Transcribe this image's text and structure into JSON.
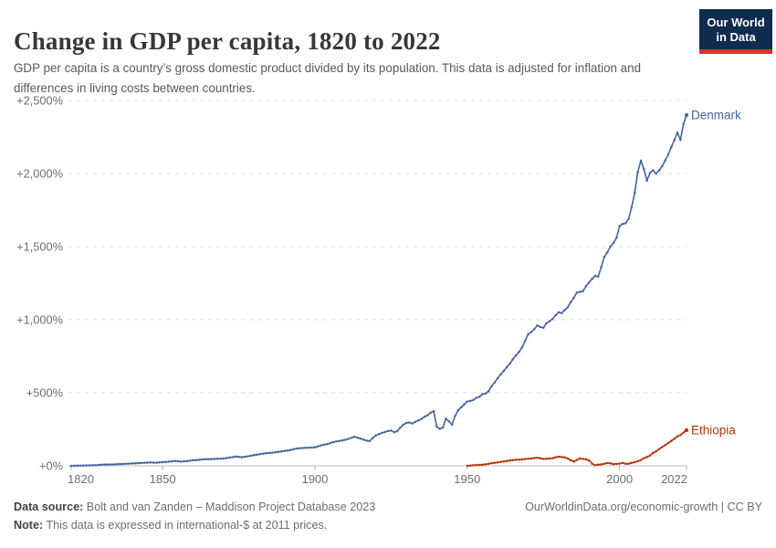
{
  "header": {
    "title": "Change in GDP per capita, 1820 to 2022",
    "subtitle": "GDP per capita is a country’s gross domestic product divided by its population. This data is adjusted for inflation and differences in living costs between countries."
  },
  "logo": {
    "line1": "Our World",
    "line2": "in Data",
    "bg": "#0f2b4d",
    "stripe": "#d8322a"
  },
  "footer": {
    "source_label": "Data source:",
    "source_text": "Bolt and van Zanden – Maddison Project Database 2023",
    "note_label": "Note:",
    "note_text": "This data is expressed in international-$ at 2011 prices.",
    "credit": "OurWorldinData.org/economic-growth | CC BY"
  },
  "chart_data": {
    "type": "line",
    "title": "Change in GDP per capita, 1820 to 2022",
    "xlabel": "",
    "ylabel": "",
    "xlim": [
      1820,
      2022
    ],
    "ylim": [
      0,
      2500
    ],
    "grid": "horizontal-dashed",
    "legend_position": "line-end-labels",
    "x_ticks": [
      {
        "label": "1820",
        "value": 1820
      },
      {
        "label": "1850",
        "value": 1850
      },
      {
        "label": "1900",
        "value": 1900
      },
      {
        "label": "1950",
        "value": 1950
      },
      {
        "label": "2000",
        "value": 2000
      },
      {
        "label": "2022",
        "value": 2022
      }
    ],
    "y_ticks": [
      {
        "label": "+0%",
        "value": 0
      },
      {
        "label": "+500%",
        "value": 500
      },
      {
        "label": "+1,000%",
        "value": 1000
      },
      {
        "label": "+1,500%",
        "value": 1500
      },
      {
        "label": "+2,000%",
        "value": 2000
      },
      {
        "label": "+2,500%",
        "value": 2500
      }
    ],
    "series": [
      {
        "name": "Denmark",
        "color": "#44659e",
        "points": [
          [
            1820,
            0
          ],
          [
            1822,
            1
          ],
          [
            1824,
            2
          ],
          [
            1826,
            3
          ],
          [
            1828,
            4
          ],
          [
            1830,
            8
          ],
          [
            1832,
            9
          ],
          [
            1834,
            10
          ],
          [
            1836,
            12
          ],
          [
            1838,
            14
          ],
          [
            1840,
            16
          ],
          [
            1842,
            18
          ],
          [
            1844,
            21
          ],
          [
            1846,
            23
          ],
          [
            1848,
            21
          ],
          [
            1850,
            25
          ],
          [
            1852,
            28
          ],
          [
            1854,
            33
          ],
          [
            1856,
            29
          ],
          [
            1858,
            32
          ],
          [
            1860,
            38
          ],
          [
            1862,
            41
          ],
          [
            1864,
            45
          ],
          [
            1866,
            46
          ],
          [
            1868,
            48
          ],
          [
            1870,
            50
          ],
          [
            1872,
            56
          ],
          [
            1874,
            63
          ],
          [
            1876,
            59
          ],
          [
            1878,
            65
          ],
          [
            1880,
            73
          ],
          [
            1882,
            80
          ],
          [
            1884,
            86
          ],
          [
            1886,
            90
          ],
          [
            1888,
            95
          ],
          [
            1890,
            101
          ],
          [
            1892,
            108
          ],
          [
            1894,
            118
          ],
          [
            1896,
            122
          ],
          [
            1898,
            124
          ],
          [
            1900,
            126
          ],
          [
            1902,
            140
          ],
          [
            1904,
            149
          ],
          [
            1906,
            162
          ],
          [
            1908,
            170
          ],
          [
            1910,
            178
          ],
          [
            1912,
            191
          ],
          [
            1913,
            198
          ],
          [
            1915,
            186
          ],
          [
            1917,
            172
          ],
          [
            1918,
            170
          ],
          [
            1919,
            190
          ],
          [
            1920,
            208
          ],
          [
            1922,
            225
          ],
          [
            1924,
            238
          ],
          [
            1925,
            241
          ],
          [
            1926,
            230
          ],
          [
            1927,
            236
          ],
          [
            1928,
            261
          ],
          [
            1929,
            281
          ],
          [
            1930,
            293
          ],
          [
            1931,
            296
          ],
          [
            1932,
            290
          ],
          [
            1933,
            301
          ],
          [
            1934,
            311
          ],
          [
            1935,
            321
          ],
          [
            1936,
            336
          ],
          [
            1937,
            346
          ],
          [
            1938,
            363
          ],
          [
            1939,
            373
          ],
          [
            1940,
            268
          ],
          [
            1941,
            253
          ],
          [
            1942,
            262
          ],
          [
            1943,
            322
          ],
          [
            1944,
            305
          ],
          [
            1945,
            281
          ],
          [
            1946,
            340
          ],
          [
            1947,
            380
          ],
          [
            1948,
            400
          ],
          [
            1949,
            420
          ],
          [
            1950,
            440
          ],
          [
            1951,
            444
          ],
          [
            1952,
            450
          ],
          [
            1953,
            465
          ],
          [
            1954,
            472
          ],
          [
            1955,
            490
          ],
          [
            1956,
            495
          ],
          [
            1957,
            510
          ],
          [
            1958,
            545
          ],
          [
            1959,
            570
          ],
          [
            1960,
            600
          ],
          [
            1961,
            625
          ],
          [
            1962,
            650
          ],
          [
            1963,
            675
          ],
          [
            1964,
            700
          ],
          [
            1965,
            730
          ],
          [
            1966,
            755
          ],
          [
            1967,
            780
          ],
          [
            1968,
            810
          ],
          [
            1969,
            855
          ],
          [
            1970,
            900
          ],
          [
            1971,
            915
          ],
          [
            1972,
            935
          ],
          [
            1973,
            960
          ],
          [
            1974,
            950
          ],
          [
            1975,
            945
          ],
          [
            1976,
            975
          ],
          [
            1977,
            990
          ],
          [
            1978,
            1005
          ],
          [
            1979,
            1030
          ],
          [
            1980,
            1050
          ],
          [
            1981,
            1045
          ],
          [
            1982,
            1065
          ],
          [
            1983,
            1085
          ],
          [
            1984,
            1120
          ],
          [
            1985,
            1150
          ],
          [
            1986,
            1185
          ],
          [
            1987,
            1190
          ],
          [
            1988,
            1195
          ],
          [
            1989,
            1230
          ],
          [
            1990,
            1255
          ],
          [
            1991,
            1280
          ],
          [
            1992,
            1300
          ],
          [
            1993,
            1295
          ],
          [
            1994,
            1360
          ],
          [
            1995,
            1430
          ],
          [
            1996,
            1460
          ],
          [
            1997,
            1500
          ],
          [
            1998,
            1525
          ],
          [
            1999,
            1560
          ],
          [
            2000,
            1640
          ],
          [
            2001,
            1655
          ],
          [
            2002,
            1660
          ],
          [
            2003,
            1690
          ],
          [
            2004,
            1770
          ],
          [
            2005,
            1870
          ],
          [
            2006,
            2010
          ],
          [
            2007,
            2088
          ],
          [
            2008,
            2030
          ],
          [
            2009,
            1952
          ],
          [
            2010,
            2005
          ],
          [
            2011,
            2022
          ],
          [
            2012,
            2000
          ],
          [
            2013,
            2022
          ],
          [
            2014,
            2050
          ],
          [
            2015,
            2090
          ],
          [
            2016,
            2130
          ],
          [
            2017,
            2180
          ],
          [
            2018,
            2230
          ],
          [
            2019,
            2280
          ],
          [
            2020,
            2230
          ],
          [
            2021,
            2340
          ],
          [
            2022,
            2400
          ]
        ]
      },
      {
        "name": "Ethiopia",
        "color": "#b13507",
        "points": [
          [
            1950,
            0
          ],
          [
            1951,
            2
          ],
          [
            1952,
            4
          ],
          [
            1953,
            5
          ],
          [
            1954,
            6
          ],
          [
            1955,
            8
          ],
          [
            1956,
            10
          ],
          [
            1957,
            14
          ],
          [
            1958,
            18
          ],
          [
            1959,
            20
          ],
          [
            1960,
            23
          ],
          [
            1961,
            27
          ],
          [
            1962,
            30
          ],
          [
            1963,
            33
          ],
          [
            1964,
            36
          ],
          [
            1965,
            39
          ],
          [
            1966,
            41
          ],
          [
            1967,
            42
          ],
          [
            1968,
            44
          ],
          [
            1969,
            46
          ],
          [
            1970,
            48
          ],
          [
            1971,
            50
          ],
          [
            1972,
            53
          ],
          [
            1973,
            55
          ],
          [
            1974,
            52
          ],
          [
            1975,
            47
          ],
          [
            1976,
            48
          ],
          [
            1977,
            50
          ],
          [
            1978,
            52
          ],
          [
            1979,
            58
          ],
          [
            1980,
            62
          ],
          [
            1981,
            60
          ],
          [
            1982,
            58
          ],
          [
            1983,
            50
          ],
          [
            1984,
            38
          ],
          [
            1985,
            29
          ],
          [
            1986,
            40
          ],
          [
            1987,
            50
          ],
          [
            1988,
            47
          ],
          [
            1989,
            44
          ],
          [
            1990,
            36
          ],
          [
            1991,
            15
          ],
          [
            1992,
            4
          ],
          [
            1993,
            8
          ],
          [
            1994,
            10
          ],
          [
            1995,
            14
          ],
          [
            1996,
            19
          ],
          [
            1997,
            17
          ],
          [
            1998,
            11
          ],
          [
            1999,
            13
          ],
          [
            2000,
            15
          ],
          [
            2001,
            20
          ],
          [
            2002,
            14
          ],
          [
            2003,
            14
          ],
          [
            2004,
            20
          ],
          [
            2005,
            25
          ],
          [
            2006,
            32
          ],
          [
            2007,
            40
          ],
          [
            2008,
            52
          ],
          [
            2009,
            60
          ],
          [
            2010,
            70
          ],
          [
            2011,
            88
          ],
          [
            2012,
            98
          ],
          [
            2013,
            115
          ],
          [
            2014,
            128
          ],
          [
            2015,
            142
          ],
          [
            2016,
            156
          ],
          [
            2017,
            170
          ],
          [
            2018,
            185
          ],
          [
            2019,
            202
          ],
          [
            2020,
            210
          ],
          [
            2021,
            228
          ],
          [
            2022,
            244
          ]
        ]
      }
    ]
  }
}
